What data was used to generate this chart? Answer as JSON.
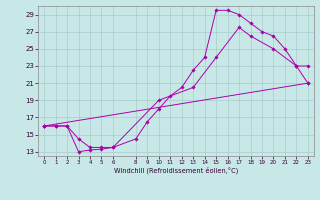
{
  "xlabel": "Windchill (Refroidissement éolien,°C)",
  "background_color": "#c8e8e8",
  "grid_color": "#aacccc",
  "line_color": "#aa00aa",
  "xlim": [
    -0.5,
    23.5
  ],
  "ylim": [
    12.5,
    30.0
  ],
  "xticks": [
    0,
    1,
    2,
    3,
    4,
    5,
    6,
    8,
    9,
    10,
    11,
    12,
    13,
    14,
    15,
    16,
    17,
    18,
    19,
    20,
    21,
    22,
    23
  ],
  "yticks": [
    13,
    15,
    17,
    19,
    21,
    23,
    25,
    27,
    29
  ],
  "line1_x": [
    0,
    1,
    2,
    3,
    4,
    5,
    6,
    8,
    9,
    10,
    11,
    12,
    13,
    14,
    15,
    16,
    17,
    18,
    19,
    20,
    21,
    22,
    23
  ],
  "line1_y": [
    16.0,
    16.0,
    16.0,
    13.0,
    13.2,
    13.3,
    13.5,
    14.5,
    16.5,
    18.0,
    19.5,
    20.5,
    22.5,
    24.0,
    29.5,
    29.5,
    29.0,
    28.0,
    27.0,
    26.5,
    25.0,
    23.0,
    23.0
  ],
  "line2_x": [
    0,
    1,
    2,
    3,
    4,
    5,
    6,
    10,
    13,
    15,
    17,
    18,
    20,
    22,
    23
  ],
  "line2_y": [
    16.0,
    16.0,
    16.0,
    14.5,
    13.5,
    13.5,
    13.5,
    19.0,
    20.5,
    24.0,
    27.5,
    26.5,
    25.0,
    23.0,
    21.0
  ],
  "line3_x": [
    0,
    23
  ],
  "line3_y": [
    16.0,
    21.0
  ]
}
